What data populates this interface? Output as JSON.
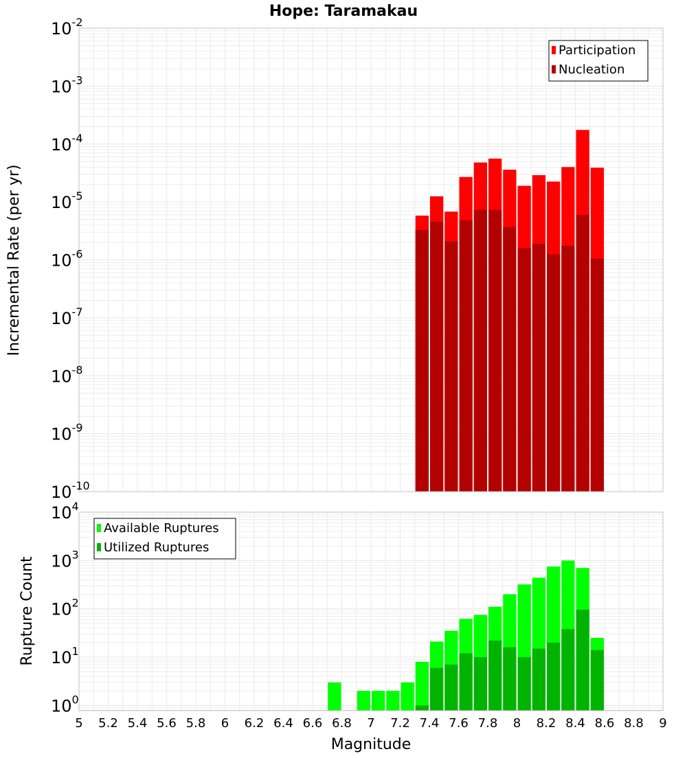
{
  "title": "Hope: Taramakau",
  "xlabel": "Magnitude",
  "x_ticks": [
    "5",
    "5.2",
    "5.4",
    "5.6",
    "5.8",
    "6",
    "6.2",
    "6.4",
    "6.6",
    "6.8",
    "7",
    "7.2",
    "7.4",
    "7.6",
    "7.8",
    "8",
    "8.2",
    "8.4",
    "8.6",
    "8.8",
    "9"
  ],
  "colors": {
    "participation": "#ff0000",
    "nucleation": "#b30000",
    "available": "#00ff00",
    "utilized": "#00b300",
    "grid": "#e6e6e6",
    "border": "#c0c0c0"
  },
  "chart_data": [
    {
      "type": "bar",
      "title": "Hope: Taramakau",
      "ylabel": "Incremental Rate (per yr)",
      "xlabel": "",
      "xlim": [
        5,
        9
      ],
      "ylim": [
        1e-10,
        0.01
      ],
      "yscale": "log",
      "y_ticks": [
        {
          "base": "10",
          "exp": "-2",
          "value": 0.01
        },
        {
          "base": "10",
          "exp": "-3",
          "value": 0.001
        },
        {
          "base": "10",
          "exp": "-4",
          "value": 0.0001
        },
        {
          "base": "10",
          "exp": "-5",
          "value": 1e-05
        },
        {
          "base": "10",
          "exp": "-6",
          "value": 1e-06
        },
        {
          "base": "10",
          "exp": "-7",
          "value": 1e-07
        },
        {
          "base": "10",
          "exp": "-8",
          "value": 1e-08
        },
        {
          "base": "10",
          "exp": "-9",
          "value": 1e-09
        },
        {
          "base": "10",
          "exp": "-10",
          "value": 1e-10
        }
      ],
      "legend_position": "top-right",
      "x": [
        7.35,
        7.45,
        7.55,
        7.65,
        7.75,
        7.85,
        7.95,
        8.05,
        8.15,
        8.25,
        8.35,
        8.45,
        8.55
      ],
      "series": [
        {
          "name": "Participation",
          "values": [
            5.8e-06,
            1.25e-05,
            6.8e-06,
            2.7e-05,
            4.8e-05,
            5.6e-05,
            3.6e-05,
            1.9e-05,
            2.9e-05,
            2.25e-05,
            4e-05,
            0.000175,
            3.9e-05
          ]
        },
        {
          "name": "Nucleation",
          "values": [
            3.3e-06,
            4.6e-06,
            2.1e-06,
            4.8e-06,
            7.3e-06,
            7.3e-06,
            3.7e-06,
            1.6e-06,
            1.9e-06,
            1.25e-06,
            1.75e-06,
            6e-06,
            1.05e-06
          ]
        }
      ]
    },
    {
      "type": "bar",
      "title": "",
      "ylabel": "Rupture Count",
      "xlabel": "Magnitude",
      "xlim": [
        5,
        9
      ],
      "ylim": [
        0.78,
        10000
      ],
      "yscale": "log",
      "y_ticks": [
        {
          "base": "10",
          "exp": "4",
          "value": 10000
        },
        {
          "base": "10",
          "exp": "3",
          "value": 1000
        },
        {
          "base": "10",
          "exp": "2",
          "value": 100
        },
        {
          "base": "10",
          "exp": "1",
          "value": 10
        },
        {
          "base": "10",
          "exp": "0",
          "value": 1
        }
      ],
      "legend_position": "top-left",
      "x": [
        6.75,
        6.95,
        7.05,
        7.15,
        7.25,
        7.35,
        7.45,
        7.55,
        7.65,
        7.75,
        7.85,
        7.95,
        8.05,
        8.15,
        8.25,
        8.35,
        8.45,
        8.55
      ],
      "series": [
        {
          "name": "Available Ruptures",
          "values": [
            3,
            2,
            2,
            2,
            3,
            8,
            21,
            35,
            62,
            75,
            110,
            200,
            320,
            440,
            750,
            1000,
            700,
            25
          ]
        },
        {
          "name": "Utilized Ruptures",
          "values": [
            null,
            null,
            null,
            null,
            null,
            1,
            6,
            7,
            12,
            10,
            22,
            16,
            10,
            15,
            20,
            38,
            96,
            14
          ]
        }
      ]
    }
  ]
}
